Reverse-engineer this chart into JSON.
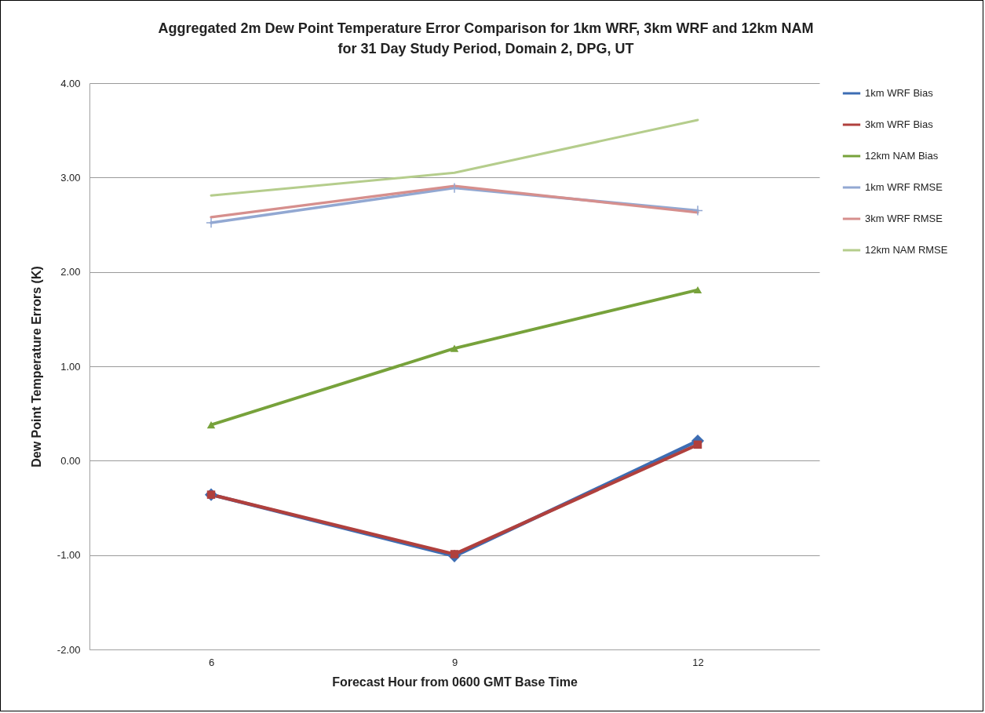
{
  "chart_data": {
    "type": "line",
    "title": "Aggregated 2m Dew Point Temperature Error Comparison for 1km WRF, 3km WRF and 12km NAM for 31 Day Study Period, Domain 2, DPG, UT",
    "xlabel": "Forecast Hour from 0600 GMT Base Time",
    "ylabel": "Dew Point Temperature Errors (K)",
    "categories": [
      "6",
      "9",
      "12"
    ],
    "ylim": [
      -2,
      4
    ],
    "yticks": [
      {
        "value": -2,
        "label": "-2.00"
      },
      {
        "value": -1,
        "label": "-1.00"
      },
      {
        "value": 0,
        "label": "0.00"
      },
      {
        "value": 1,
        "label": "1.00"
      },
      {
        "value": 2,
        "label": "2.00"
      },
      {
        "value": 3,
        "label": "3.00"
      },
      {
        "value": 4,
        "label": "4.00"
      }
    ],
    "grid": "y",
    "legend": "right",
    "line_style": "solid",
    "series": [
      {
        "name": "1km WRF Bias",
        "color": "#3d6db3",
        "marker": "diamond",
        "values": [
          -0.36,
          -1.01,
          0.21
        ]
      },
      {
        "name": "3km WRF Bias",
        "color": "#b0403d",
        "marker": "square",
        "values": [
          -0.36,
          -0.99,
          0.17
        ]
      },
      {
        "name": "12km NAM Bias",
        "color": "#77a23b",
        "marker": "triangle",
        "values": [
          0.38,
          1.19,
          1.81
        ]
      },
      {
        "name": "1km WRF RMSE",
        "color": "#92a8d2",
        "marker": "cross",
        "values": [
          2.52,
          2.89,
          2.65
        ]
      },
      {
        "name": "3km WRF RMSE",
        "color": "#d68f8d",
        "marker": "none",
        "values": [
          2.58,
          2.91,
          2.63
        ]
      },
      {
        "name": "12km NAM RMSE",
        "color": "#b5cd8c",
        "marker": "none",
        "values": [
          2.81,
          3.05,
          3.61
        ]
      }
    ]
  }
}
